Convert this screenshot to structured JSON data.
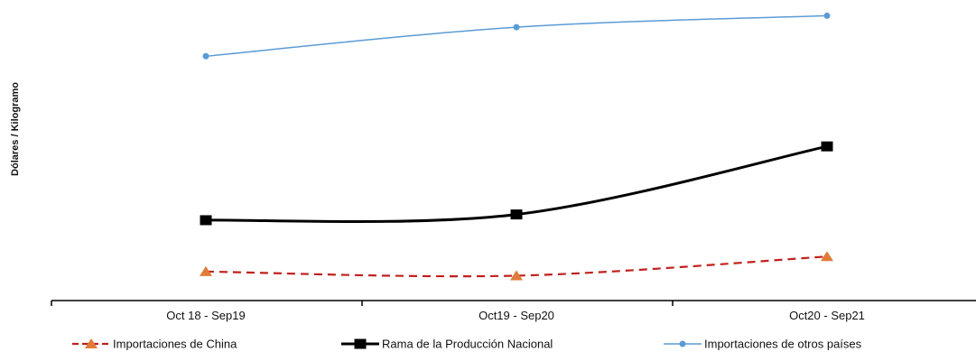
{
  "chart_data": {
    "type": "line",
    "title": "",
    "xlabel": "",
    "ylabel": "Dólares / Kilogramo",
    "categories": [
      "Oct 18 - Sep19",
      "Oct19 - Sep20",
      "Oct20 - Sep21"
    ],
    "ylim": [
      0,
      100
    ],
    "y_tick_labels_visible": false,
    "grid": false,
    "legend_position": "bottom",
    "series": [
      {
        "name": "Importaciones de China",
        "values": [
          10.6,
          9.1,
          16.1
        ],
        "color": "#c0211f",
        "line_style": "dashed",
        "marker": "triangle"
      },
      {
        "name": "Rama de la Producción Nacional",
        "values": [
          29.4,
          31.5,
          56.4
        ],
        "color": "#000000",
        "line_style": "solid",
        "marker": "square"
      },
      {
        "name": "Importaciones de otros países",
        "values": [
          89.4,
          100.0,
          104.2
        ],
        "color": "#5b9bd5",
        "line_style": "solid",
        "marker": "circle"
      }
    ]
  }
}
